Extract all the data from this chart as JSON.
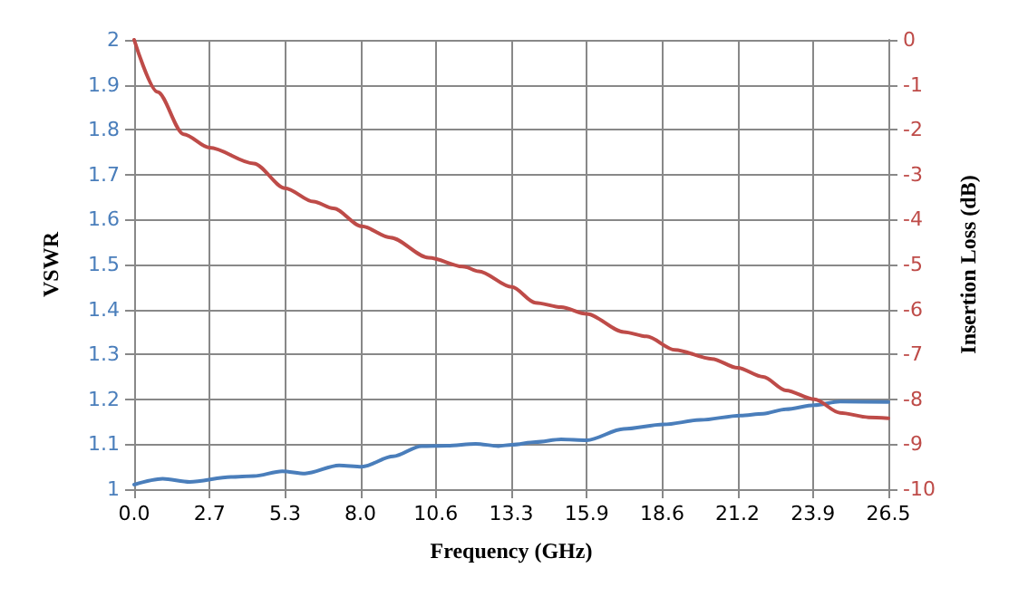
{
  "chart_data": {
    "type": "line",
    "xlabel": "Frequency (GHz)",
    "ylabel": "VSWR",
    "y2label": "Insertion Loss (dB)",
    "xlim": [
      0,
      26.5
    ],
    "xticks": [
      {
        "value": 0,
        "label": "0.0"
      },
      {
        "value": 2.65,
        "label": "2.7"
      },
      {
        "value": 5.3,
        "label": "5.3"
      },
      {
        "value": 7.95,
        "label": "8.0"
      },
      {
        "value": 10.6,
        "label": "10.6"
      },
      {
        "value": 13.25,
        "label": "13.3"
      },
      {
        "value": 15.9,
        "label": "15.9"
      },
      {
        "value": 18.55,
        "label": "18.6"
      },
      {
        "value": 21.2,
        "label": "21.2"
      },
      {
        "value": 23.85,
        "label": "23.9"
      },
      {
        "value": 26.5,
        "label": "26.5"
      }
    ],
    "ylim": [
      1,
      2
    ],
    "yticks": [
      1,
      1.1,
      1.2,
      1.3,
      1.4,
      1.5,
      1.6,
      1.7,
      1.8,
      1.9,
      2
    ],
    "y2lim": [
      -10,
      0
    ],
    "y2ticks": [
      -10,
      -9,
      -8,
      -7,
      -6,
      -5,
      -4,
      -3,
      -2,
      -1,
      0
    ],
    "grid": true,
    "marker": "none",
    "line_style": "solid",
    "series": [
      {
        "color": "#4a7ebb",
        "x": [
          0,
          1,
          1.95,
          3.4,
          4.2,
          5.2,
          6,
          7.2,
          8,
          9.1,
          10.1,
          11,
          12,
          12.8,
          13.27,
          14.1,
          15,
          15.9,
          17.2,
          18.6,
          19.9,
          21.3,
          22.1,
          22.9,
          23.9,
          24.8,
          26.5
        ],
        "values": [
          1.01,
          1.023,
          1.016,
          1.027,
          1.029,
          1.04,
          1.035,
          1.053,
          1.05,
          1.073,
          1.096,
          1.097,
          1.101,
          1.096,
          1.099,
          1.105,
          1.111,
          1.109,
          1.134,
          1.144,
          1.154,
          1.164,
          1.168,
          1.178,
          1.187,
          1.195,
          1.194
        ]
      },
      {
        "color": "#be4b48",
        "axis": "y2",
        "x": [
          0,
          0.82,
          1.74,
          2.65,
          4.2,
          5.3,
          6.3,
          7,
          8,
          9,
          10.35,
          11.6,
          12.1,
          13.27,
          14.1,
          15,
          15.9,
          17.2,
          18,
          19,
          20.3,
          21.2,
          22.1,
          22.9,
          23.9,
          24.8,
          25.8,
          26.5
        ],
        "values": [
          0,
          -1.16,
          -2.1,
          -2.4,
          -2.75,
          -3.3,
          -3.6,
          -3.75,
          -4.15,
          -4.4,
          -4.85,
          -5.05,
          -5.15,
          -5.5,
          -5.85,
          -5.95,
          -6.1,
          -6.5,
          -6.6,
          -6.9,
          -7.1,
          -7.3,
          -7.5,
          -7.8,
          -8,
          -8.3,
          -8.4,
          -8.42
        ]
      }
    ]
  }
}
